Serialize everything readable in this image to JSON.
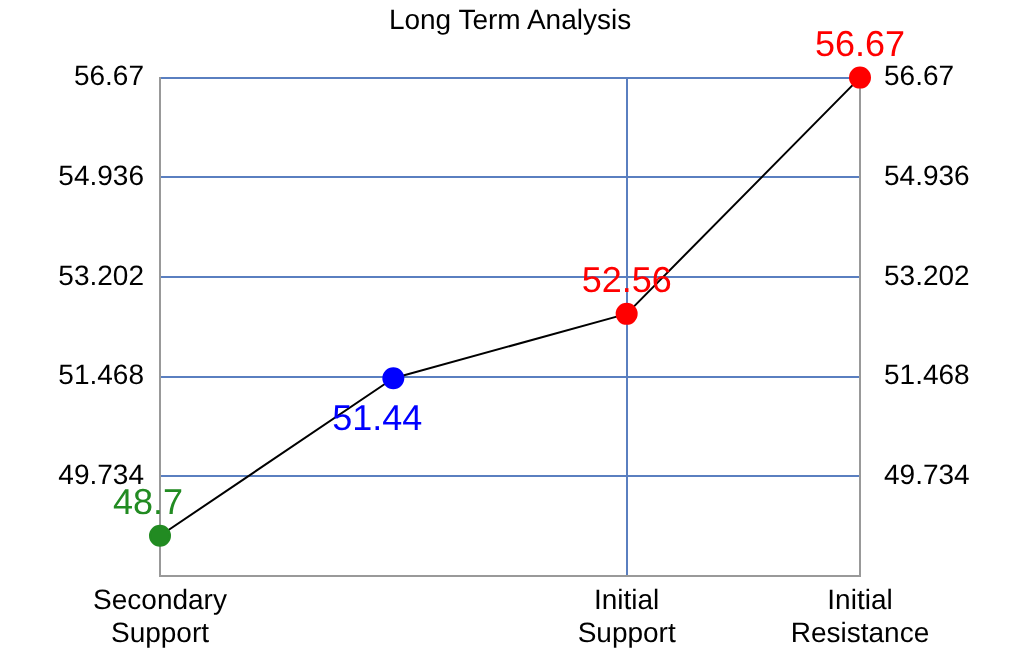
{
  "chart_data": {
    "type": "line",
    "title": "Long Term Analysis",
    "categories": [
      "Secondary Support",
      null,
      "Initial Support",
      "Initial Resistance"
    ],
    "series": [
      {
        "color": "#000000",
        "colors": [
          "#228b22",
          "#0000ff",
          "#ff0000",
          "#ff0000"
        ],
        "values": [
          48.7,
          51.44,
          52.56,
          56.67
        ]
      }
    ],
    "ylim": [
      48,
      56.67
    ],
    "yticks": [
      49.734,
      51.468,
      53.202,
      54.936,
      56.67
    ],
    "y2lim": [
      48,
      56.67
    ],
    "y2ticks": [
      49.734,
      51.468,
      53.202,
      54.936,
      56.67
    ],
    "data_labels": true,
    "grid": true,
    "legend": false,
    "marker": "circle",
    "line_style": "solid"
  }
}
